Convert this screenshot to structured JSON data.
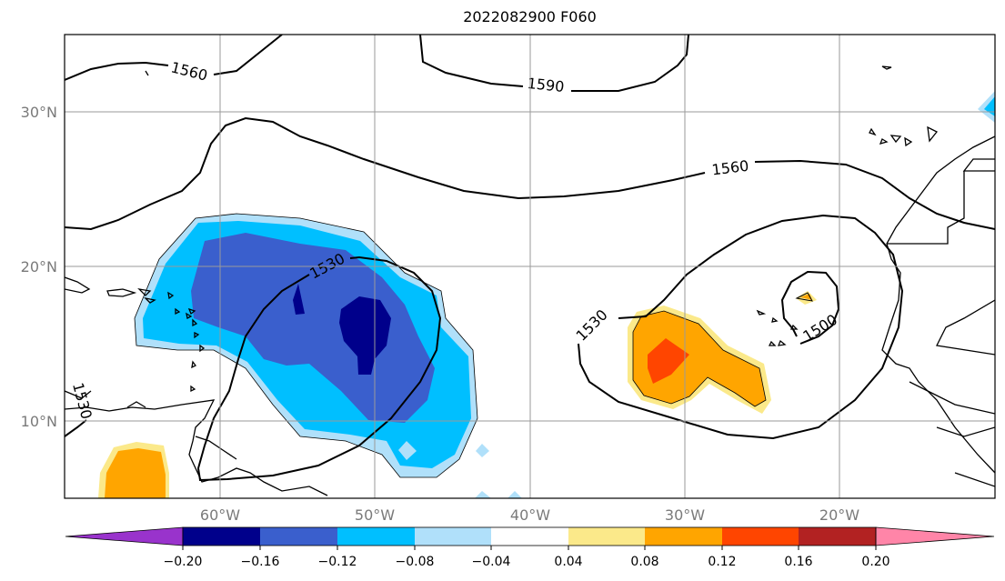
{
  "title": "2022082900 F060",
  "lat_labels": [
    "30°N",
    "20°N",
    "10°N"
  ],
  "lon_labels": [
    "60°W",
    "50°W",
    "40°W",
    "30°W",
    "20°W"
  ],
  "contour_labels": [
    "1560",
    "1590",
    "1560",
    "1530",
    "1530",
    "1500",
    "1530"
  ],
  "colorbar": {
    "ticks": [
      "−0.20",
      "−0.16",
      "−0.12",
      "−0.08",
      "−0.04",
      "0.04",
      "0.08",
      "0.12",
      "0.16",
      "0.20"
    ],
    "colors": [
      "#9933cc",
      "#00008b",
      "#3a5fcd",
      "#00bfff",
      "#b0e0fa",
      "#ffffff",
      "#fbe98a",
      "#ffa500",
      "#ff4500",
      "#b22222",
      "#ff85a8"
    ]
  }
}
